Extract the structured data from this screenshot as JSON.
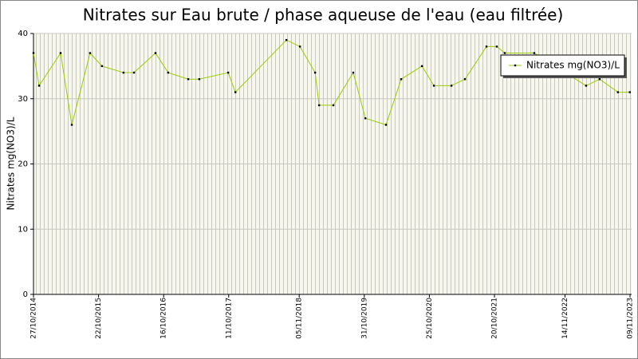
{
  "chart_data": {
    "type": "line",
    "title": "Nitrates sur Eau brute / phase aqueuse de l'eau (eau filtrée)",
    "y_label": "Nitrates mg(NO3)/L",
    "x": [
      "2014-10-27",
      "2014-11-27",
      "2015-03-26",
      "2015-05-27",
      "2015-09-05",
      "2015-11-10",
      "2016-03-08",
      "2016-05-05",
      "2016-09-01",
      "2016-11-10",
      "2017-03-01",
      "2017-05-01",
      "2017-10-08",
      "2017-11-17",
      "2018-08-26",
      "2018-11-09",
      "2019-02-01",
      "2019-02-23",
      "2019-05-13",
      "2019-08-31",
      "2019-11-06",
      "2020-02-28",
      "2020-05-22",
      "2020-09-14",
      "2020-11-19",
      "2021-02-24",
      "2021-05-10",
      "2021-09-06",
      "2021-11-02",
      "2021-12-16",
      "2022-05-28",
      "2023-03-11",
      "2023-05-25",
      "2023-09-03",
      "2023-11-08"
    ],
    "series": [
      {
        "name": "Nitrates mg(NO3)/L",
        "color": "#99cc00",
        "values": [
          37,
          32,
          37,
          26,
          37,
          35,
          34,
          34,
          37,
          34,
          33,
          33,
          34,
          31,
          39,
          38,
          34,
          29,
          29,
          34,
          27,
          26,
          33,
          35,
          32,
          32,
          33,
          38,
          38,
          37,
          37,
          32,
          33,
          31,
          31
        ]
      }
    ],
    "xlim": [
      "2014-10-27",
      "2023-11-09"
    ],
    "xticks": [
      {
        "value": "2014-10-27",
        "label": "27/10/2014"
      },
      {
        "value": "2015-10-22",
        "label": "22/10/2015"
      },
      {
        "value": "2016-10-16",
        "label": "16/10/2016"
      },
      {
        "value": "2017-10-11",
        "label": "11/10/2017"
      },
      {
        "value": "2018-11-05",
        "label": "05/11/2018"
      },
      {
        "value": "2019-10-31",
        "label": "31/10/2019"
      },
      {
        "value": "2020-10-25",
        "label": "25/10/2020"
      },
      {
        "value": "2021-10-20",
        "label": "20/10/2021"
      },
      {
        "value": "2022-11-14",
        "label": "14/11/2022"
      },
      {
        "value": "2023-11-09",
        "label": "09/11/2023"
      }
    ],
    "ylim": [
      0,
      40
    ],
    "yticks": [
      0,
      10,
      20,
      30,
      40
    ],
    "grid": true,
    "legend": "top-right"
  }
}
